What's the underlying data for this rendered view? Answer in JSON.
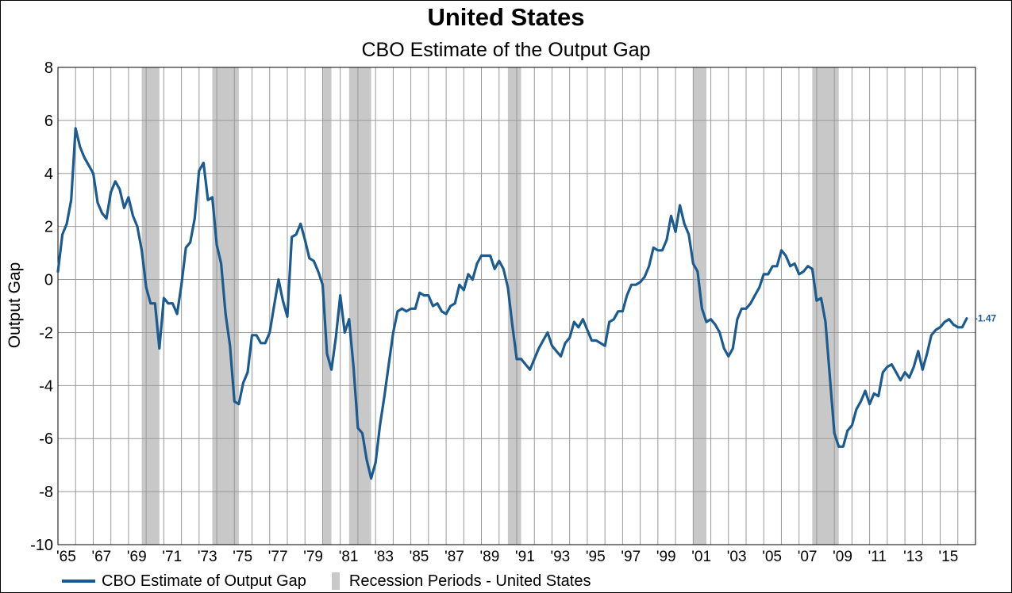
{
  "header": {
    "title": "United States",
    "subtitle": "CBO Estimate of the Output Gap"
  },
  "colors": {
    "series": "#1b5b8f",
    "recession": "#c8c8c8",
    "grid": "#999999",
    "end_label": "#1b5b8f"
  },
  "legend": {
    "series_label": "CBO Estimate of Output Gap",
    "recession_label": "Recession Periods - United States"
  },
  "chart_data": {
    "type": "line",
    "title": "United States",
    "subtitle": "CBO Estimate of the Output Gap",
    "xlabel": "",
    "ylabel": "Output Gap",
    "xlim": [
      1965.0,
      2017.0
    ],
    "ylim": [
      -10,
      8
    ],
    "y_ticks": [
      8,
      6,
      4,
      2,
      0,
      -2,
      -4,
      -6,
      -8,
      -10
    ],
    "x_tick_labels": [
      "'65",
      "'67",
      "'69",
      "'71",
      "'73",
      "'75",
      "'77",
      "'79",
      "'81",
      "'83",
      "'85",
      "'87",
      "'89",
      "'91",
      "'93",
      "'95",
      "'97",
      "'99",
      "'01",
      "'03",
      "'05",
      "'07",
      "'09",
      "'11",
      "'13",
      "'15"
    ],
    "grid": true,
    "legend_position": "bottom-left",
    "end_label": "-1.47",
    "recessions": [
      [
        1969.75,
        1970.75
      ],
      [
        1973.75,
        1975.25
      ],
      [
        1980.0,
        1980.5
      ],
      [
        1981.5,
        1982.75
      ],
      [
        1990.5,
        1991.25
      ],
      [
        2001.0,
        2001.75
      ],
      [
        2007.75,
        2009.25
      ]
    ],
    "series": [
      {
        "name": "CBO Estimate of Output Gap",
        "points": [
          [
            1965.0,
            0.3
          ],
          [
            1965.25,
            1.7
          ],
          [
            1965.5,
            2.1
          ],
          [
            1965.75,
            3.0
          ],
          [
            1966.0,
            5.7
          ],
          [
            1966.25,
            5.0
          ],
          [
            1966.5,
            4.6
          ],
          [
            1966.75,
            4.3
          ],
          [
            1967.0,
            4.0
          ],
          [
            1967.25,
            2.9
          ],
          [
            1967.5,
            2.5
          ],
          [
            1967.75,
            2.3
          ],
          [
            1968.0,
            3.3
          ],
          [
            1968.25,
            3.7
          ],
          [
            1968.5,
            3.4
          ],
          [
            1968.75,
            2.7
          ],
          [
            1969.0,
            3.1
          ],
          [
            1969.25,
            2.4
          ],
          [
            1969.5,
            2.0
          ],
          [
            1969.75,
            1.1
          ],
          [
            1970.0,
            -0.3
          ],
          [
            1970.25,
            -0.9
          ],
          [
            1970.5,
            -0.9
          ],
          [
            1970.75,
            -2.6
          ],
          [
            1971.0,
            -0.7
          ],
          [
            1971.25,
            -0.9
          ],
          [
            1971.5,
            -0.9
          ],
          [
            1971.75,
            -1.3
          ],
          [
            1972.0,
            -0.2
          ],
          [
            1972.25,
            1.2
          ],
          [
            1972.5,
            1.4
          ],
          [
            1972.75,
            2.3
          ],
          [
            1973.0,
            4.1
          ],
          [
            1973.25,
            4.4
          ],
          [
            1973.5,
            3.0
          ],
          [
            1973.75,
            3.1
          ],
          [
            1974.0,
            1.3
          ],
          [
            1974.25,
            0.6
          ],
          [
            1974.5,
            -1.3
          ],
          [
            1974.75,
            -2.5
          ],
          [
            1975.0,
            -4.6
          ],
          [
            1975.25,
            -4.7
          ],
          [
            1975.5,
            -3.9
          ],
          [
            1975.75,
            -3.5
          ],
          [
            1976.0,
            -2.1
          ],
          [
            1976.25,
            -2.1
          ],
          [
            1976.5,
            -2.4
          ],
          [
            1976.75,
            -2.4
          ],
          [
            1977.0,
            -2.0
          ],
          [
            1977.25,
            -1.0
          ],
          [
            1977.5,
            0.0
          ],
          [
            1977.75,
            -0.8
          ],
          [
            1978.0,
            -1.4
          ],
          [
            1978.25,
            1.6
          ],
          [
            1978.5,
            1.7
          ],
          [
            1978.75,
            2.1
          ],
          [
            1979.0,
            1.5
          ],
          [
            1979.25,
            0.8
          ],
          [
            1979.5,
            0.7
          ],
          [
            1979.75,
            0.3
          ],
          [
            1980.0,
            -0.2
          ],
          [
            1980.25,
            -2.8
          ],
          [
            1980.5,
            -3.4
          ],
          [
            1980.75,
            -2.2
          ],
          [
            1981.0,
            -0.6
          ],
          [
            1981.25,
            -2.0
          ],
          [
            1981.5,
            -1.5
          ],
          [
            1981.75,
            -3.3
          ],
          [
            1982.0,
            -5.6
          ],
          [
            1982.25,
            -5.8
          ],
          [
            1982.5,
            -6.8
          ],
          [
            1982.75,
            -7.5
          ],
          [
            1983.0,
            -6.9
          ],
          [
            1983.25,
            -5.5
          ],
          [
            1983.5,
            -4.4
          ],
          [
            1983.75,
            -3.2
          ],
          [
            1984.0,
            -2.0
          ],
          [
            1984.25,
            -1.2
          ],
          [
            1984.5,
            -1.1
          ],
          [
            1984.75,
            -1.2
          ],
          [
            1985.0,
            -1.1
          ],
          [
            1985.25,
            -1.1
          ],
          [
            1985.5,
            -0.5
          ],
          [
            1985.75,
            -0.6
          ],
          [
            1986.0,
            -0.6
          ],
          [
            1986.25,
            -1.0
          ],
          [
            1986.5,
            -0.9
          ],
          [
            1986.75,
            -1.2
          ],
          [
            1987.0,
            -1.3
          ],
          [
            1987.25,
            -1.0
          ],
          [
            1987.5,
            -0.9
          ],
          [
            1987.75,
            -0.2
          ],
          [
            1988.0,
            -0.4
          ],
          [
            1988.25,
            0.2
          ],
          [
            1988.5,
            0.0
          ],
          [
            1988.75,
            0.6
          ],
          [
            1989.0,
            0.9
          ],
          [
            1989.25,
            0.9
          ],
          [
            1989.5,
            0.9
          ],
          [
            1989.75,
            0.4
          ],
          [
            1990.0,
            0.7
          ],
          [
            1990.25,
            0.4
          ],
          [
            1990.5,
            -0.3
          ],
          [
            1990.75,
            -1.7
          ],
          [
            1991.0,
            -3.0
          ],
          [
            1991.25,
            -3.0
          ],
          [
            1991.5,
            -3.2
          ],
          [
            1991.75,
            -3.4
          ],
          [
            1992.0,
            -3.0
          ],
          [
            1992.25,
            -2.6
          ],
          [
            1992.5,
            -2.3
          ],
          [
            1992.75,
            -2.0
          ],
          [
            1993.0,
            -2.5
          ],
          [
            1993.25,
            -2.7
          ],
          [
            1993.5,
            -2.9
          ],
          [
            1993.75,
            -2.4
          ],
          [
            1994.0,
            -2.2
          ],
          [
            1994.25,
            -1.6
          ],
          [
            1994.5,
            -1.8
          ],
          [
            1994.75,
            -1.5
          ],
          [
            1995.0,
            -1.9
          ],
          [
            1995.25,
            -2.3
          ],
          [
            1995.5,
            -2.3
          ],
          [
            1995.75,
            -2.4
          ],
          [
            1996.0,
            -2.5
          ],
          [
            1996.25,
            -1.6
          ],
          [
            1996.5,
            -1.5
          ],
          [
            1996.75,
            -1.2
          ],
          [
            1997.0,
            -1.2
          ],
          [
            1997.25,
            -0.6
          ],
          [
            1997.5,
            -0.2
          ],
          [
            1997.75,
            -0.2
          ],
          [
            1998.0,
            -0.1
          ],
          [
            1998.25,
            0.1
          ],
          [
            1998.5,
            0.5
          ],
          [
            1998.75,
            1.2
          ],
          [
            1999.0,
            1.1
          ],
          [
            1999.25,
            1.1
          ],
          [
            1999.5,
            1.5
          ],
          [
            1999.75,
            2.4
          ],
          [
            2000.0,
            1.8
          ],
          [
            2000.25,
            2.8
          ],
          [
            2000.5,
            2.1
          ],
          [
            2000.75,
            1.7
          ],
          [
            2001.0,
            0.6
          ],
          [
            2001.25,
            0.3
          ],
          [
            2001.5,
            -1.1
          ],
          [
            2001.75,
            -1.6
          ],
          [
            2002.0,
            -1.5
          ],
          [
            2002.25,
            -1.7
          ],
          [
            2002.5,
            -2.0
          ],
          [
            2002.75,
            -2.6
          ],
          [
            2003.0,
            -2.9
          ],
          [
            2003.25,
            -2.6
          ],
          [
            2003.5,
            -1.5
          ],
          [
            2003.75,
            -1.1
          ],
          [
            2004.0,
            -1.1
          ],
          [
            2004.25,
            -0.9
          ],
          [
            2004.5,
            -0.6
          ],
          [
            2004.75,
            -0.3
          ],
          [
            2005.0,
            0.2
          ],
          [
            2005.25,
            0.2
          ],
          [
            2005.5,
            0.5
          ],
          [
            2005.75,
            0.5
          ],
          [
            2006.0,
            1.1
          ],
          [
            2006.25,
            0.9
          ],
          [
            2006.5,
            0.5
          ],
          [
            2006.75,
            0.6
          ],
          [
            2007.0,
            0.2
          ],
          [
            2007.25,
            0.3
          ],
          [
            2007.5,
            0.5
          ],
          [
            2007.75,
            0.4
          ],
          [
            2008.0,
            -0.8
          ],
          [
            2008.25,
            -0.7
          ],
          [
            2008.5,
            -1.6
          ],
          [
            2008.75,
            -3.7
          ],
          [
            2009.0,
            -5.8
          ],
          [
            2009.25,
            -6.3
          ],
          [
            2009.5,
            -6.3
          ],
          [
            2009.75,
            -5.7
          ],
          [
            2010.0,
            -5.5
          ],
          [
            2010.25,
            -4.9
          ],
          [
            2010.5,
            -4.6
          ],
          [
            2010.75,
            -4.2
          ],
          [
            2011.0,
            -4.7
          ],
          [
            2011.25,
            -4.3
          ],
          [
            2011.5,
            -4.4
          ],
          [
            2011.75,
            -3.5
          ],
          [
            2012.0,
            -3.3
          ],
          [
            2012.25,
            -3.2
          ],
          [
            2012.5,
            -3.5
          ],
          [
            2012.75,
            -3.8
          ],
          [
            2013.0,
            -3.5
          ],
          [
            2013.25,
            -3.7
          ],
          [
            2013.5,
            -3.3
          ],
          [
            2013.75,
            -2.7
          ],
          [
            2014.0,
            -3.4
          ],
          [
            2014.25,
            -2.8
          ],
          [
            2014.5,
            -2.1
          ],
          [
            2014.75,
            -1.9
          ],
          [
            2015.0,
            -1.8
          ],
          [
            2015.25,
            -1.6
          ],
          [
            2015.5,
            -1.5
          ],
          [
            2015.75,
            -1.7
          ],
          [
            2016.0,
            -1.8
          ],
          [
            2016.25,
            -1.8
          ],
          [
            2016.5,
            -1.47
          ]
        ]
      }
    ]
  }
}
